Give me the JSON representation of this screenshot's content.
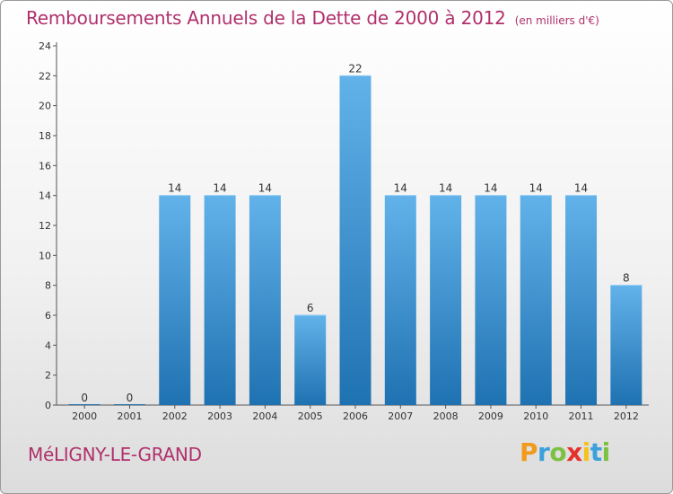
{
  "chart_data": {
    "type": "bar",
    "title": "Remboursements Annuels de la Dette de 2000 à 2012",
    "unit_note": "(en milliers d'€)",
    "categories": [
      "2000",
      "2001",
      "2002",
      "2003",
      "2004",
      "2005",
      "2006",
      "2007",
      "2008",
      "2009",
      "2010",
      "2011",
      "2012"
    ],
    "values": [
      0,
      0,
      14,
      14,
      14,
      6,
      22,
      14,
      14,
      14,
      14,
      14,
      8
    ],
    "ylim": [
      0,
      24
    ],
    "yticks": [
      0,
      2,
      4,
      6,
      8,
      10,
      12,
      14,
      16,
      18,
      20,
      22,
      24
    ],
    "xlabel": "",
    "ylabel": "",
    "grid": false,
    "bar_color_top": "#62b2ea",
    "bar_color_bottom": "#1f72b1"
  },
  "footer": {
    "commune": "MéLIGNY-LE-GRAND",
    "logo": {
      "letters": [
        "P",
        "r",
        "o",
        "x",
        "i",
        "t",
        "i"
      ],
      "colors": [
        "#f29a1d",
        "#3ca0dc",
        "#7cc142",
        "#e4322b",
        "#f5c21a",
        "#3ca0dc",
        "#7cc142"
      ]
    }
  },
  "colors": {
    "title": "#b0306c",
    "axis": "#555555"
  }
}
